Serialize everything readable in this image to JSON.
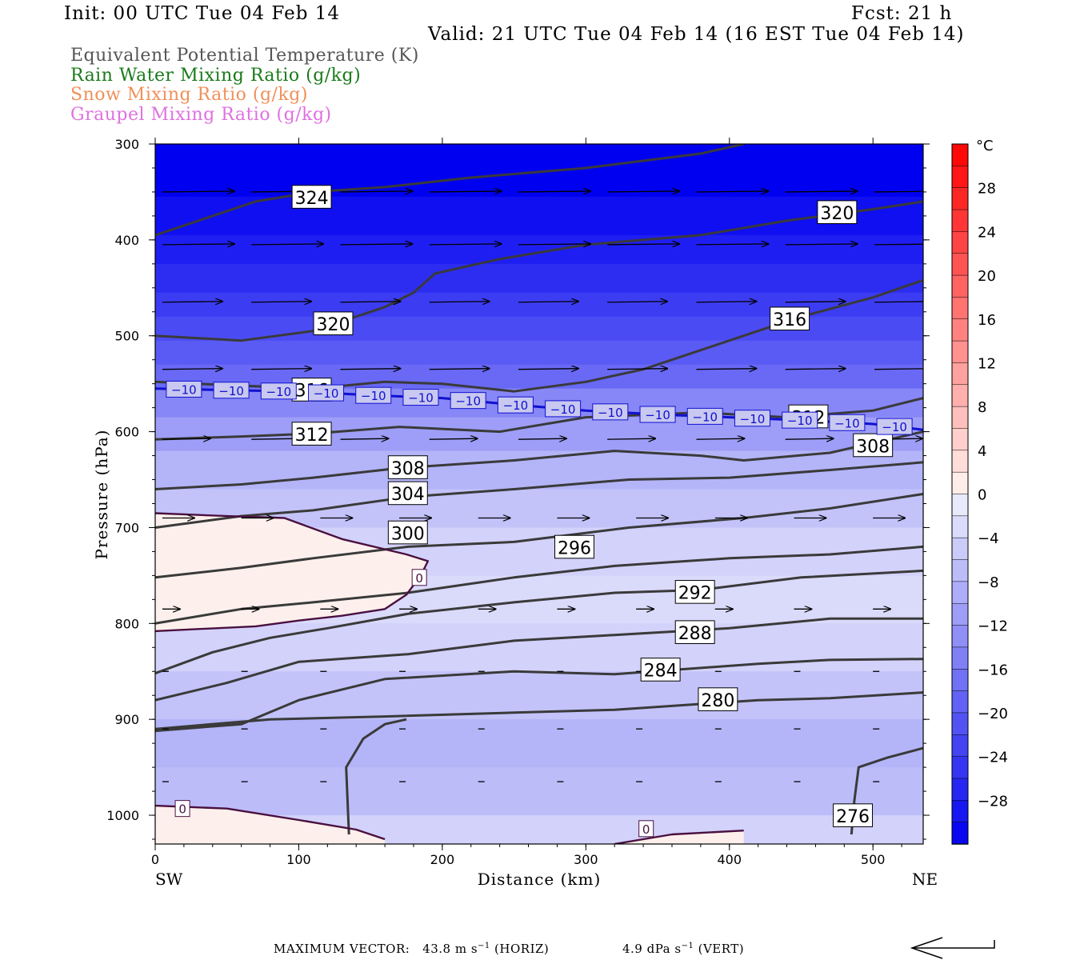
{
  "header": {
    "init": "Init: 00 UTC Tue 04 Feb 14",
    "fcst": "Fcst:   21 h",
    "valid": "Valid: 21 UTC Tue 04 Feb 14 (16 EST Tue 04 Feb 14)"
  },
  "legend": {
    "items": [
      {
        "label": "Equivalent Potential Temperature (K)",
        "color": "#555555"
      },
      {
        "label": "Rain Water Mixing Ratio (g/kg)",
        "color": "#1a7a1a"
      },
      {
        "label": "Snow Mixing Ratio (g/kg)",
        "color": "#f0905a"
      },
      {
        "label": "Graupel Mixing Ratio (g/kg)",
        "color": "#e070e0"
      }
    ]
  },
  "chart_data": {
    "type": "heatmap",
    "x_axis": {
      "label": "Distance (km)",
      "range": [
        0,
        535
      ],
      "ticks": [
        0,
        100,
        200,
        300,
        400,
        500
      ],
      "left_end": "SW",
      "right_end": "NE"
    },
    "y_axis": {
      "label": "Pressure (hPa)",
      "range": [
        300,
        1030
      ],
      "ticks": [
        300,
        400,
        500,
        600,
        700,
        800,
        900,
        1000
      ],
      "inverted": true
    },
    "colorbar": {
      "unit": "°C",
      "levels": [
        -32,
        -30,
        -28,
        -26,
        -24,
        -22,
        -20,
        -18,
        -16,
        -14,
        -12,
        -10,
        -8,
        -6,
        -4,
        -2,
        0,
        2,
        4,
        6,
        8,
        10,
        12,
        14,
        16,
        18,
        20,
        22,
        24,
        26,
        28,
        30,
        32
      ],
      "labels": [
        "28",
        "24",
        "20",
        "16",
        "12",
        "8",
        "4",
        "0",
        "−4",
        "−8",
        "−12",
        "−16",
        "−20",
        "−24",
        "−28"
      ],
      "label_values": [
        28,
        24,
        20,
        16,
        12,
        8,
        4,
        0,
        -4,
        -8,
        -12,
        -16,
        -20,
        -24,
        -28
      ]
    },
    "temperature_bands": [
      {
        "p": 300,
        "t": -32
      },
      {
        "p": 355,
        "t": -30
      },
      {
        "p": 395,
        "t": -28
      },
      {
        "p": 425,
        "t": -26
      },
      {
        "p": 455,
        "t": -24
      },
      {
        "p": 480,
        "t": -22
      },
      {
        "p": 505,
        "t": -20
      },
      {
        "p": 530,
        "t": -18
      },
      {
        "p": 555,
        "t": -14
      },
      {
        "p": 585,
        "t": -11
      },
      {
        "p": 620,
        "t": -8
      },
      {
        "p": 660,
        "t": -6
      },
      {
        "p": 700,
        "t": -4
      },
      {
        "p": 750,
        "t": -3
      },
      {
        "p": 800,
        "t": -4
      },
      {
        "p": 850,
        "t": -6
      },
      {
        "p": 900,
        "t": -8
      },
      {
        "p": 950,
        "t": -7
      },
      {
        "p": 1000,
        "t": -4
      },
      {
        "p": 1030,
        "t": -2
      }
    ],
    "theta_e_contours": [
      {
        "value": 324,
        "label": "324",
        "points": [
          [
            0,
            395
          ],
          [
            30,
            380
          ],
          [
            70,
            360
          ],
          [
            110,
            350
          ],
          [
            160,
            345
          ],
          [
            220,
            335
          ],
          [
            300,
            325
          ],
          [
            380,
            310
          ],
          [
            410,
            300
          ]
        ],
        "label_at": [
          109,
          356
        ]
      },
      {
        "value": 320,
        "label": "320",
        "points": [
          [
            0,
            500
          ],
          [
            60,
            505
          ],
          [
            110,
            495
          ],
          [
            160,
            470
          ],
          [
            180,
            455
          ],
          [
            195,
            435
          ],
          [
            240,
            420
          ],
          [
            300,
            405
          ],
          [
            380,
            395
          ],
          [
            440,
            380
          ],
          [
            500,
            368
          ],
          [
            535,
            360
          ]
        ],
        "label_at": [
          124,
          488
        ],
        "label2": "320",
        "label2_at": [
          475,
          372
        ]
      },
      {
        "value": 316,
        "label": "316",
        "points": [
          [
            0,
            548
          ],
          [
            60,
            552
          ],
          [
            110,
            555
          ],
          [
            160,
            548
          ],
          [
            200,
            550
          ],
          [
            250,
            558
          ],
          [
            300,
            548
          ],
          [
            340,
            535
          ],
          [
            380,
            515
          ],
          [
            420,
            495
          ],
          [
            450,
            480
          ],
          [
            500,
            460
          ],
          [
            535,
            442
          ]
        ],
        "label_at": [
          109,
          557
        ],
        "label2": "316",
        "label2_at": [
          442,
          483
        ]
      },
      {
        "value": 312,
        "label": "312",
        "points": [
          [
            0,
            608
          ],
          [
            60,
            605
          ],
          [
            110,
            602
          ],
          [
            170,
            595
          ],
          [
            240,
            600
          ],
          [
            300,
            585
          ],
          [
            380,
            580
          ],
          [
            440,
            585
          ],
          [
            500,
            578
          ],
          [
            535,
            565
          ]
        ],
        "label_at": [
          109,
          603
        ],
        "label2": "312",
        "label2_at": [
          455,
          585
        ]
      },
      {
        "value": 308,
        "label": "308",
        "points": [
          [
            0,
            660
          ],
          [
            60,
            655
          ],
          [
            110,
            648
          ],
          [
            170,
            638
          ],
          [
            250,
            630
          ],
          [
            320,
            620
          ],
          [
            380,
            625
          ],
          [
            410,
            630
          ],
          [
            470,
            622
          ],
          [
            535,
            600
          ]
        ],
        "label_at": [
          176,
          638
        ],
        "label2": "308",
        "label2_at": [
          500,
          615
        ]
      },
      {
        "value": 304,
        "label": "304",
        "points": [
          [
            0,
            700
          ],
          [
            60,
            688
          ],
          [
            110,
            682
          ],
          [
            176,
            668
          ],
          [
            250,
            660
          ],
          [
            330,
            650
          ],
          [
            400,
            648
          ],
          [
            470,
            640
          ],
          [
            535,
            632
          ]
        ],
        "label_at": [
          176,
          665
        ]
      },
      {
        "value": 300,
        "label": "300",
        "points": [
          [
            0,
            752
          ],
          [
            60,
            742
          ],
          [
            110,
            732
          ],
          [
            176,
            720
          ],
          [
            250,
            715
          ],
          [
            330,
            700
          ],
          [
            410,
            690
          ],
          [
            470,
            680
          ],
          [
            535,
            665
          ]
        ],
        "label_at": [
          176,
          706
        ]
      },
      {
        "value": 296,
        "label": "296",
        "points": [
          [
            0,
            800
          ],
          [
            60,
            785
          ],
          [
            110,
            778
          ],
          [
            176,
            768
          ],
          [
            250,
            752
          ],
          [
            320,
            740
          ],
          [
            400,
            732
          ],
          [
            470,
            728
          ],
          [
            535,
            720
          ]
        ],
        "label_at": [
          292,
          721
        ]
      },
      {
        "value": 292,
        "label": "292",
        "points": [
          [
            0,
            852
          ],
          [
            40,
            830
          ],
          [
            80,
            815
          ],
          [
            120,
            805
          ],
          [
            176,
            790
          ],
          [
            250,
            778
          ],
          [
            320,
            768
          ],
          [
            380,
            765
          ],
          [
            450,
            752
          ],
          [
            535,
            745
          ]
        ],
        "label_at": [
          376,
          768
        ]
      },
      {
        "value": 288,
        "label": "288",
        "points": [
          [
            0,
            880
          ],
          [
            50,
            862
          ],
          [
            100,
            840
          ],
          [
            176,
            832
          ],
          [
            250,
            818
          ],
          [
            320,
            812
          ],
          [
            400,
            805
          ],
          [
            470,
            795
          ],
          [
            535,
            795
          ]
        ],
        "label_at": [
          376,
          810
        ]
      },
      {
        "value": 284,
        "label": "284",
        "points": [
          [
            0,
            912
          ],
          [
            60,
            905
          ],
          [
            100,
            880
          ],
          [
            160,
            858
          ],
          [
            250,
            850
          ],
          [
            320,
            853
          ],
          [
            420,
            842
          ],
          [
            470,
            838
          ],
          [
            535,
            837
          ]
        ],
        "label_at": [
          352,
          849
        ]
      },
      {
        "value": 280,
        "label": "280",
        "points": [
          [
            0,
            910
          ],
          [
            80,
            900
          ],
          [
            160,
            897
          ],
          [
            250,
            893
          ],
          [
            320,
            890
          ],
          [
            420,
            880
          ],
          [
            470,
            878
          ],
          [
            535,
            872
          ]
        ],
        "label_at": [
          392,
          880
        ]
      },
      {
        "value": 276,
        "label": "276",
        "points": [
          [
            135,
            1020
          ],
          [
            133,
            950
          ],
          [
            145,
            920
          ],
          [
            160,
            905
          ],
          [
            175,
            900
          ]
        ],
        "label2_points": [
          [
            485,
            1020
          ],
          [
            487,
            985
          ],
          [
            490,
            950
          ],
          [
            510,
            940
          ],
          [
            535,
            930
          ]
        ],
        "label_at": [
          486,
          1001
        ]
      }
    ],
    "temperature_contours": [
      {
        "value": -10,
        "label": "−10",
        "points": [
          [
            0,
            555
          ],
          [
            60,
            557
          ],
          [
            100,
            558
          ],
          [
            150,
            562
          ],
          [
            200,
            565
          ],
          [
            250,
            572
          ],
          [
            300,
            578
          ],
          [
            350,
            582
          ],
          [
            400,
            585
          ],
          [
            450,
            588
          ],
          [
            500,
            592
          ],
          [
            535,
            598
          ]
        ]
      },
      {
        "value": 0,
        "label": "0",
        "points": [
          [
            0,
            685
          ],
          [
            50,
            688
          ],
          [
            90,
            690
          ],
          [
            130,
            712
          ],
          [
            175,
            728
          ],
          [
            190,
            735
          ],
          [
            185,
            750
          ],
          [
            175,
            770
          ],
          [
            160,
            785
          ],
          [
            130,
            792
          ],
          [
            100,
            797
          ],
          [
            70,
            803
          ],
          [
            0,
            808
          ]
        ],
        "label_at": [
          184,
          752
        ]
      },
      {
        "value": 0,
        "label": "0",
        "points": [
          [
            0,
            990
          ],
          [
            50,
            993
          ],
          [
            100,
            1005
          ],
          [
            140,
            1015
          ],
          [
            160,
            1025
          ]
        ],
        "label_at": [
          19,
          993
        ]
      },
      {
        "value": 0,
        "label": "0",
        "points": [
          [
            320,
            1030
          ],
          [
            360,
            1020
          ],
          [
            410,
            1016
          ]
        ],
        "label_at": [
          342,
          1014
        ]
      }
    ],
    "max_vector": {
      "horiz": "43.8 m s",
      "horiz_sup": "−1",
      "horiz_tag": "(HORIZ)",
      "vert": "4.9 dPa s",
      "vert_sup": "−1",
      "vert_tag": "(VERT)"
    }
  },
  "footer": {
    "max_vector_label": "MAXIMUM VECTOR:"
  }
}
